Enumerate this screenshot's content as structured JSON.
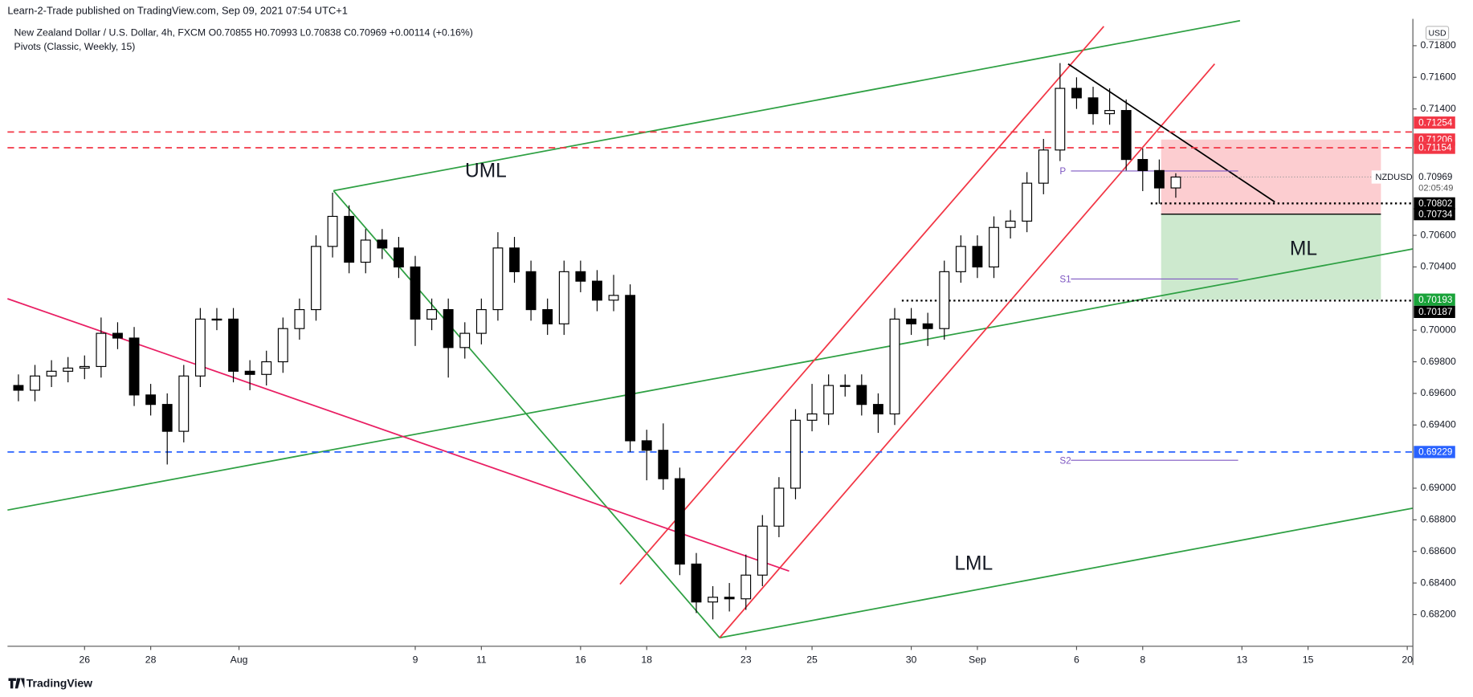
{
  "header": {
    "publisher": "Learn-2-Trade published on TradingView.com, Sep 09, 2021 07:54 UTC+1",
    "brand": "TradingView"
  },
  "chart_data": {
    "type": "candlestick",
    "symbol": "New Zealand Dollar / U.S. Dollar, 4h, FXCM",
    "ohlc": "O0.70855 H0.70993 L0.70838 C0.70969 +0.00114 (+0.16%)",
    "indicator": "Pivots (Classic, Weekly, 15)",
    "currency": "USD",
    "last_price": {
      "name": "NZDUSD",
      "countdown": "02:05:49"
    },
    "annotations": {
      "uml": "UML",
      "ml": "ML",
      "lml": "LML",
      "p": "P",
      "s1": "S1",
      "s2": "S2"
    },
    "up_color": "#ffffff",
    "down_color": "#000000",
    "x": [
      -2,
      -1.5,
      -1,
      -0.5,
      0,
      0.5,
      1,
      1.5,
      2,
      2.5,
      3,
      3.5,
      4,
      4.5,
      5,
      5.5,
      6,
      6.5,
      7,
      7.5,
      8,
      8.5,
      9,
      9.5,
      10,
      10.5,
      11,
      11.5,
      12,
      12.5,
      13,
      13.5,
      14,
      14.5,
      15,
      15.5,
      16,
      16.5,
      17,
      17.5,
      18,
      18.5,
      19,
      19.5,
      20,
      20.5,
      21,
      21.5,
      22,
      22.5,
      23,
      23.5,
      24,
      24.5,
      25,
      25.5,
      26,
      26.5,
      27,
      27.5,
      28,
      28.5,
      29,
      29.5,
      30,
      30.5,
      31,
      31.5,
      32,
      32.5,
      33
    ],
    "open": [
      0.6965,
      0.6962,
      0.6971,
      0.6974,
      0.6976,
      0.6977,
      0.6998,
      0.6995,
      0.6959,
      0.6953,
      0.6936,
      0.6971,
      0.7007,
      0.7007,
      0.6974,
      0.6972,
      0.698,
      0.7001,
      0.7013,
      0.7053,
      0.7072,
      0.7043,
      0.7057,
      0.7052,
      0.704,
      0.7007,
      0.7013,
      0.6989,
      0.6998,
      0.7013,
      0.7052,
      0.7037,
      0.7013,
      0.7004,
      0.7037,
      0.7031,
      0.7019,
      0.7022,
      0.693,
      0.6924,
      0.6906,
      0.6852,
      0.6828,
      0.6831,
      0.683,
      0.6845,
      0.6876,
      0.69,
      0.6943,
      0.6947,
      0.6965,
      0.6965,
      0.6953,
      0.6947,
      0.7007,
      0.7004,
      0.7001,
      0.7037,
      0.7053,
      0.704,
      0.7065,
      0.7069,
      0.7093,
      0.7114,
      0.7153,
      0.7147,
      0.7137,
      0.7139,
      0.7108,
      0.7101,
      0.709
    ],
    "high": [
      0.6972,
      0.6978,
      0.6981,
      0.6983,
      0.6984,
      0.7008,
      0.7005,
      0.7002,
      0.6966,
      0.696,
      0.6978,
      0.7014,
      0.7014,
      0.7014,
      0.6981,
      0.6987,
      0.7008,
      0.702,
      0.706,
      0.7087,
      0.7079,
      0.7064,
      0.7064,
      0.7059,
      0.7047,
      0.702,
      0.702,
      0.7005,
      0.702,
      0.7062,
      0.7059,
      0.7044,
      0.702,
      0.7044,
      0.7044,
      0.7038,
      0.7035,
      0.7029,
      0.6937,
      0.6941,
      0.6913,
      0.6859,
      0.6838,
      0.684,
      0.6858,
      0.6883,
      0.6907,
      0.695,
      0.6966,
      0.6972,
      0.6972,
      0.6972,
      0.696,
      0.7014,
      0.7014,
      0.7011,
      0.7044,
      0.706,
      0.706,
      0.7072,
      0.7076,
      0.71,
      0.7121,
      0.7169,
      0.716,
      0.7154,
      0.7153,
      0.7146,
      0.7115,
      0.7108,
      0.70993
    ],
    "low": [
      0.6955,
      0.6955,
      0.6964,
      0.6967,
      0.6969,
      0.697,
      0.6988,
      0.6952,
      0.6946,
      0.6915,
      0.6929,
      0.6964,
      0.7,
      0.6967,
      0.6962,
      0.6965,
      0.6973,
      0.6994,
      0.7006,
      0.7046,
      0.7036,
      0.7036,
      0.7045,
      0.7033,
      0.699,
      0.7,
      0.697,
      0.6982,
      0.6991,
      0.7006,
      0.703,
      0.7006,
      0.6997,
      0.6997,
      0.7024,
      0.7012,
      0.7012,
      0.6923,
      0.6905,
      0.6899,
      0.6845,
      0.6821,
      0.6817,
      0.6822,
      0.6823,
      0.6838,
      0.6869,
      0.6893,
      0.6936,
      0.694,
      0.6958,
      0.6946,
      0.6935,
      0.694,
      0.6997,
      0.699,
      0.6994,
      0.703,
      0.7033,
      0.7033,
      0.7058,
      0.7062,
      0.7086,
      0.7107,
      0.714,
      0.713,
      0.713,
      0.7101,
      0.7088,
      0.708,
      0.70838
    ],
    "close": [
      0.6962,
      0.6971,
      0.6974,
      0.6976,
      0.6977,
      0.6998,
      0.6995,
      0.6959,
      0.6953,
      0.6936,
      0.6971,
      0.7007,
      0.7007,
      0.6974,
      0.6972,
      0.698,
      0.7001,
      0.7013,
      0.7053,
      0.7072,
      0.7043,
      0.7057,
      0.7052,
      0.704,
      0.7007,
      0.7013,
      0.6989,
      0.6998,
      0.7013,
      0.7052,
      0.7037,
      0.7013,
      0.7004,
      0.7037,
      0.7031,
      0.7019,
      0.7022,
      0.693,
      0.6924,
      0.6906,
      0.6852,
      0.6828,
      0.6831,
      0.683,
      0.6845,
      0.6876,
      0.69,
      0.6943,
      0.6947,
      0.6965,
      0.6965,
      0.6953,
      0.6947,
      0.7007,
      0.7004,
      0.7001,
      0.7037,
      0.7053,
      0.704,
      0.7065,
      0.7069,
      0.7093,
      0.7114,
      0.7153,
      0.7147,
      0.7137,
      0.7139,
      0.7108,
      0.7101,
      0.709,
      0.70969
    ],
    "price_labels": [
      {
        "value": 0.71254,
        "color": "#f23645",
        "line": "dashed"
      },
      {
        "value": 0.71206,
        "color": "#f23645",
        "line": "none"
      },
      {
        "value": 0.71154,
        "color": "#f23645",
        "line": "dashed"
      },
      {
        "value": 0.70802,
        "color": "#000000",
        "line": "dotted"
      },
      {
        "value": 0.70734,
        "color": "#000000",
        "line": "none"
      },
      {
        "value": 0.70193,
        "color": "#1aa33a",
        "line": "none"
      },
      {
        "value": 0.70187,
        "color": "#000000",
        "line": "dotted"
      },
      {
        "value": 0.69229,
        "color": "#2962ff",
        "line": "dashed"
      }
    ],
    "xlim": [
      -2.33,
      40.17
    ],
    "ylim": [
      0.68,
      0.7197
    ],
    "xticks": [
      {
        "value": 0,
        "label": "26"
      },
      {
        "value": 2,
        "label": "28"
      },
      {
        "value": 4.67,
        "label": "Aug"
      },
      {
        "value": 10,
        "label": "9"
      },
      {
        "value": 12,
        "label": "11"
      },
      {
        "value": 15,
        "label": "16"
      },
      {
        "value": 17,
        "label": "18"
      },
      {
        "value": 20,
        "label": "23"
      },
      {
        "value": 22,
        "label": "25"
      },
      {
        "value": 25,
        "label": "30"
      },
      {
        "value": 27,
        "label": "Sep"
      },
      {
        "value": 30,
        "label": "6"
      },
      {
        "value": 32,
        "label": "8"
      },
      {
        "value": 35,
        "label": "13"
      },
      {
        "value": 37,
        "label": "15"
      },
      {
        "value": 40,
        "label": "20"
      }
    ],
    "yticks": [
      {
        "value": 0.718,
        "label": "0.71800"
      },
      {
        "value": 0.716,
        "label": "0.71600"
      },
      {
        "value": 0.714,
        "label": "0.71400"
      },
      {
        "value": 0.706,
        "label": "0.70600"
      },
      {
        "value": 0.704,
        "label": "0.70400"
      },
      {
        "value": 0.7,
        "label": "0.70000"
      },
      {
        "value": 0.698,
        "label": "0.69800"
      },
      {
        "value": 0.696,
        "label": "0.69600"
      },
      {
        "value": 0.694,
        "label": "0.69400"
      },
      {
        "value": 0.69,
        "label": "0.69000"
      },
      {
        "value": 0.688,
        "label": "0.68800"
      },
      {
        "value": 0.686,
        "label": "0.68600"
      },
      {
        "value": 0.684,
        "label": "0.68400"
      },
      {
        "value": 0.682,
        "label": "0.68200"
      }
    ]
  }
}
